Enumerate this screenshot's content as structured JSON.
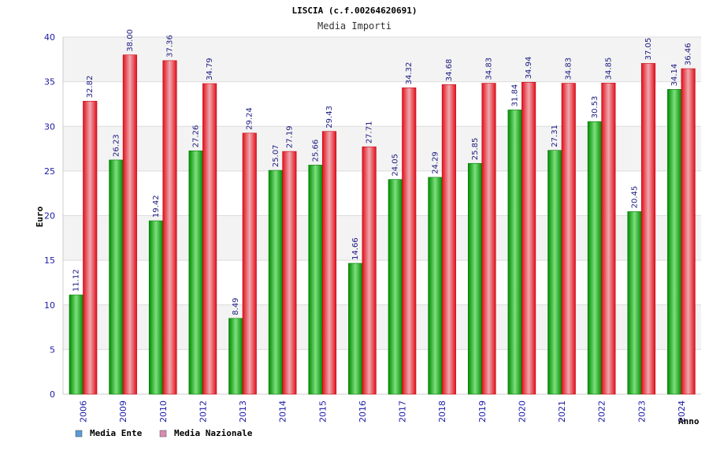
{
  "chart_data": {
    "type": "bar",
    "title": "LISCIA (c.f.00264620691)",
    "subtitle": "Media Importi",
    "ylabel": "Euro",
    "xlabel": "Anno",
    "ylim": [
      0,
      40
    ],
    "yticks": [
      0,
      5,
      10,
      15,
      20,
      25,
      30,
      35,
      40
    ],
    "grid": true,
    "legend_position": "bottom-left",
    "categories": [
      "2006",
      "2009",
      "2010",
      "2012",
      "2013",
      "2014",
      "2015",
      "2016",
      "2017",
      "2018",
      "2019",
      "2020",
      "2021",
      "2022",
      "2023",
      "2024"
    ],
    "series": [
      {
        "name": "Media Ente",
        "color": "#00b000",
        "legend_color": "#5b9bd5",
        "values": [
          11.12,
          26.23,
          19.42,
          27.26,
          8.49,
          25.07,
          25.66,
          14.66,
          24.05,
          24.29,
          25.85,
          31.84,
          27.31,
          30.53,
          20.45,
          34.14
        ],
        "labels": [
          "11.12",
          "26.23",
          "19.42",
          "27.26",
          "8.49",
          "25.07",
          "25.66",
          "14.66",
          "24.05",
          "24.29",
          "25.85",
          "31.84",
          "27.31",
          "30.53",
          "20.45",
          "34.14"
        ]
      },
      {
        "name": "Media Nazionale",
        "color": "#e81020",
        "legend_color": "#d98cb3",
        "values": [
          32.82,
          38.0,
          37.36,
          34.79,
          29.24,
          27.19,
          29.43,
          27.71,
          34.32,
          34.68,
          34.83,
          34.94,
          34.83,
          34.85,
          37.05,
          36.46
        ],
        "labels": [
          "32.82",
          "38.00",
          "37.36",
          "34.79",
          "29.24",
          "27.19",
          "29.43",
          "27.71",
          "34.32",
          "34.68",
          "34.83",
          "34.94",
          "34.83",
          "34.85",
          "37.05",
          "36.46"
        ]
      }
    ]
  }
}
